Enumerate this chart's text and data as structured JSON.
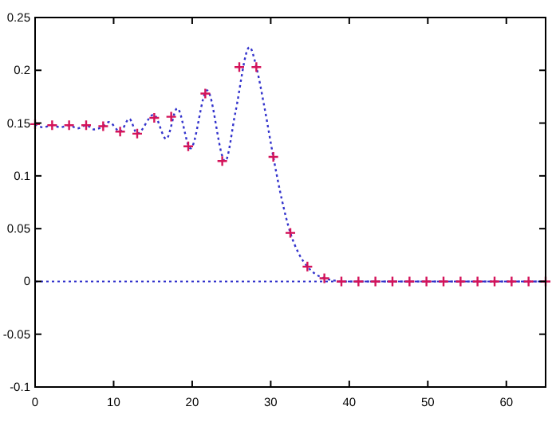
{
  "chart_data": {
    "type": "scatter",
    "xlim": [
      0,
      65
    ],
    "ylim": [
      -0.1,
      0.25
    ],
    "xticks": [
      0,
      10,
      20,
      30,
      40,
      50,
      60
    ],
    "yticks": [
      -0.1,
      -0.05,
      0,
      0.05,
      0.1,
      0.15,
      0.2,
      0.25
    ],
    "grid": false,
    "marker": "cross",
    "line_style": "dotted",
    "ref_lines": [
      {
        "axis": "y",
        "value": 0,
        "color": "#3333cc",
        "line_style": "dotted"
      }
    ],
    "series": [
      {
        "type": "line",
        "marker": "none",
        "color": "#3333cc",
        "x": [
          0,
          1,
          2.17,
          3.2,
          4.33,
          5.4,
          6.5,
          7.5,
          8.67,
          9.4,
          10.83,
          12,
          13,
          15.1,
          16.7,
          18.1,
          19.8,
          21.9,
          24.2,
          25.5,
          27.3,
          28.17,
          29.2,
          30.33,
          31.4,
          32.5,
          33.6,
          34.67,
          35.7,
          36.83,
          38,
          39,
          41.17,
          45,
          50,
          55,
          60,
          65
        ],
        "values": [
          0.149,
          0.146,
          0.148,
          0.146,
          0.148,
          0.145,
          0.148,
          0.144,
          0.147,
          0.151,
          0.142,
          0.154,
          0.14,
          0.158,
          0.135,
          0.164,
          0.126,
          0.181,
          0.114,
          0.16,
          0.222,
          0.203,
          0.165,
          0.118,
          0.078,
          0.046,
          0.026,
          0.014,
          0.007,
          0.003,
          0.001,
          0,
          0,
          0,
          0,
          0,
          0,
          0
        ]
      },
      {
        "color": "#d4145a",
        "x": [
          0,
          2.17,
          4.33,
          6.5,
          8.67,
          10.83,
          13,
          15.17,
          17.33,
          19.5,
          21.67,
          23.83,
          26,
          28.17,
          30.33,
          32.5,
          34.67,
          36.83,
          39,
          41.17,
          43.33,
          45.5,
          47.67,
          49.83,
          52,
          54.17,
          56.33,
          58.5,
          60.67,
          62.83,
          65
        ],
        "values": [
          0.149,
          0.148,
          0.148,
          0.148,
          0.147,
          0.142,
          0.14,
          0.155,
          0.156,
          0.128,
          0.178,
          0.114,
          0.203,
          0.203,
          0.118,
          0.046,
          0.014,
          0.003,
          0,
          0,
          0,
          0,
          0,
          0,
          0,
          0,
          0,
          0,
          0,
          0,
          0
        ]
      }
    ]
  }
}
